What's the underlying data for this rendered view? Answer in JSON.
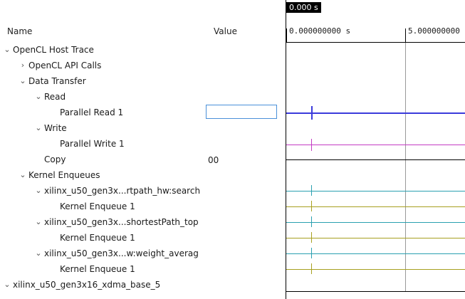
{
  "columns": {
    "name": "Name",
    "value": "Value"
  },
  "tree": [
    {
      "label": "OpenCL Host Trace",
      "arrow": "⌄"
    },
    {
      "label": "OpenCL API Calls",
      "arrow": "›"
    },
    {
      "label": "Data Transfer",
      "arrow": "⌄"
    },
    {
      "label": "Read",
      "arrow": "⌄"
    },
    {
      "label": "Parallel Read 1",
      "arrow": ""
    },
    {
      "label": "Write",
      "arrow": "⌄"
    },
    {
      "label": "Parallel Write 1",
      "arrow": ""
    },
    {
      "label": "Copy",
      "arrow": ""
    },
    {
      "label": "Kernel Enqueues",
      "arrow": "⌄"
    },
    {
      "label": "xilinx_u50_gen3x...rtpath_hw:search",
      "arrow": "⌄"
    },
    {
      "label": "Kernel Enqueue 1",
      "arrow": ""
    },
    {
      "label": "xilinx_u50_gen3x...shortestPath_top",
      "arrow": "⌄"
    },
    {
      "label": "Kernel Enqueue 1",
      "arrow": ""
    },
    {
      "label": "xilinx_u50_gen3x...w:weight_averag",
      "arrow": "⌄"
    },
    {
      "label": "Kernel Enqueue 1",
      "arrow": ""
    },
    {
      "label": "xilinx_u50_gen3x16_xdma_base_5",
      "arrow": "⌄"
    }
  ],
  "copy_value": "00",
  "timeline": {
    "cursor_time": "0.000 s",
    "ruler_labels": [
      "0.000000000 s",
      "5.000000000"
    ],
    "colors": {
      "read": "#3b3bdb",
      "write": "#c43bc4",
      "kernel_teal": "#2aa0b0",
      "kernel_olive": "#a8a020",
      "copy": "#000000"
    }
  }
}
